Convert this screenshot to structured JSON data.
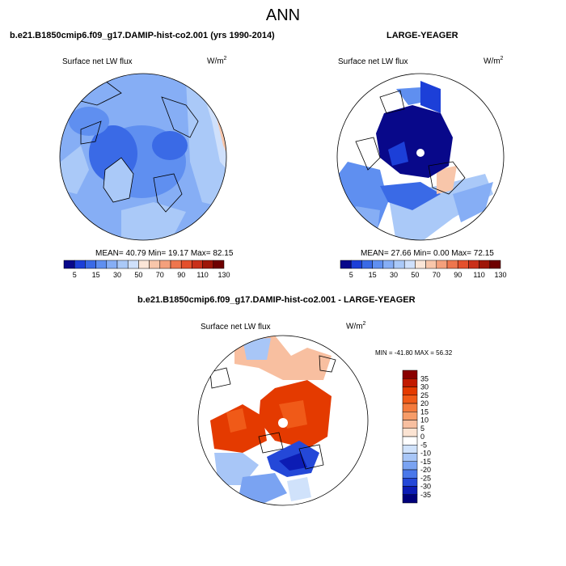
{
  "page": {
    "title": "ANN",
    "left_panel_title": "b.e21.B1850cmip6.f09_g17.DAMIP-hist-co2.001 (yrs 1990-2014)",
    "right_panel_title": "LARGE-YEAGER",
    "diff_title": "b.e21.B1850cmip6.f09_g17.DAMIP-hist-co2.001 - LARGE-YEAGER",
    "variable": "Surface net LW flux",
    "units_base": "W/m",
    "units_exp": "2"
  },
  "panels": {
    "model": {
      "stats": "MEAN=  40.79  Min=  19.17  Max=  82.15",
      "mean": 40.79,
      "min": 19.17,
      "max": 82.15
    },
    "obs": {
      "stats": "MEAN=  27.66  Min=   0.00  Max=  72.15",
      "mean": 27.66,
      "min": 0.0,
      "max": 72.15
    },
    "diff": {
      "stats": "MIN = -41.80 MAX =  56.32",
      "min": -41.8,
      "max": 56.32
    }
  },
  "colorbars": {
    "abs": {
      "labels": [
        "5",
        "15",
        "30",
        "50",
        "70",
        "90",
        "110",
        "130"
      ],
      "colors": [
        "#08088a",
        "#1c3fd8",
        "#3a6ae6",
        "#5f8ff0",
        "#86aef5",
        "#aac9f8",
        "#cfe0fb",
        "#fbe6d8",
        "#f8c6aa",
        "#f4a07c",
        "#ee764e",
        "#e4502c",
        "#c9301a",
        "#9e1608",
        "#6e0000"
      ]
    },
    "diff": {
      "labels": [
        "35",
        "30",
        "25",
        "20",
        "15",
        "10",
        "5",
        "0",
        "-5",
        "-10",
        "-15",
        "-20",
        "-25",
        "-30",
        "-35"
      ],
      "colors": [
        "#8a0000",
        "#c21a00",
        "#e43a00",
        "#f05a18",
        "#f47a3c",
        "#f69c68",
        "#f8bfa0",
        "#fbe3d2",
        "#ffffff",
        "#d0e2fb",
        "#a8c6f7",
        "#7aa3f2",
        "#4a78ea",
        "#2448d8",
        "#0c1cb4",
        "#00007a"
      ]
    }
  }
}
